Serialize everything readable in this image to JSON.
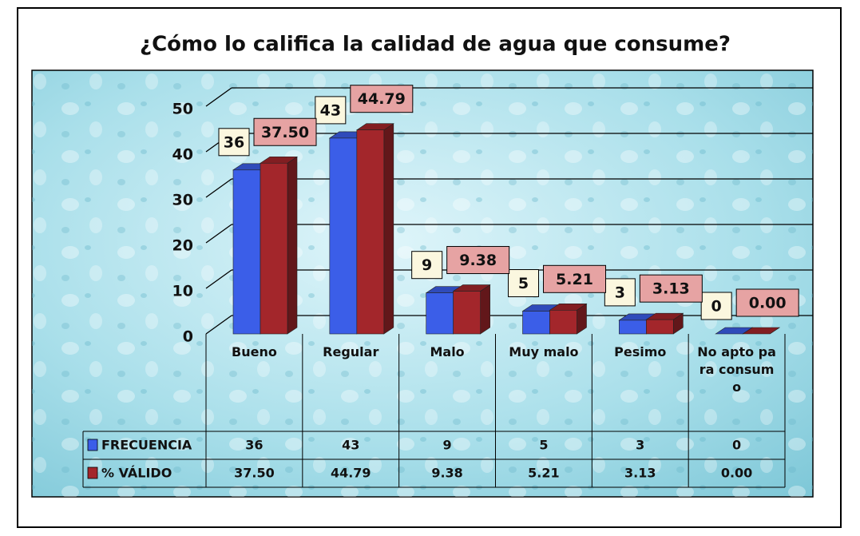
{
  "chart_data": {
    "type": "bar3d",
    "title": "¿Cómo lo califica la calidad de agua que consume?",
    "categories": [
      "Bueno",
      "Regular",
      "Malo",
      "Muy malo",
      "Pesimo",
      "No apto para consumo"
    ],
    "series": [
      {
        "name": "FRECUENCIA",
        "color": "#3b5ee8",
        "values": [
          36,
          43,
          9,
          5,
          3,
          0
        ]
      },
      {
        "name": "% VÁLIDO",
        "color": "#a3262b",
        "values": [
          37.5,
          44.79,
          9.38,
          5.21,
          3.13,
          0
        ],
        "value_labels": [
          "37.50",
          "44.79",
          "9.38",
          "5.21",
          "3.13",
          "0.00"
        ]
      }
    ],
    "ylim": [
      0,
      50
    ],
    "yticks": [
      0,
      10,
      20,
      30,
      40,
      50
    ],
    "grid": true
  }
}
